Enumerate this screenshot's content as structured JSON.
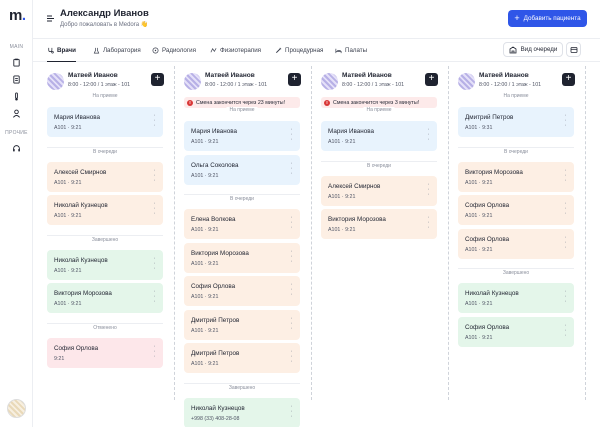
{
  "sidebar": {
    "logo": "m",
    "logo_dot": ".",
    "main_label": "MAIN",
    "other_label": "ПРОЧИЕ",
    "icons": [
      "clipboard-icon",
      "document-icon",
      "thermometer-icon",
      "user-icon",
      "headset-icon"
    ]
  },
  "header": {
    "title": "Александр Иванов",
    "subtitle": "Добро пожаловать в Medora 👋",
    "add_button": "Добавить пациента"
  },
  "tabs": [
    {
      "label": "Врачи",
      "icon": "stethoscope-icon",
      "active": true
    },
    {
      "label": "Лаборатория",
      "icon": "flask-icon",
      "active": false
    },
    {
      "label": "Радиология",
      "icon": "radiation-icon",
      "active": false
    },
    {
      "label": "Физиотерапия",
      "icon": "activity-icon",
      "active": false
    },
    {
      "label": "Процедурная",
      "icon": "syringe-icon",
      "active": false
    },
    {
      "label": "Палаты",
      "icon": "bed-icon",
      "active": false
    }
  ],
  "toolbar": {
    "view_queue": "Вид очереди"
  },
  "columns": [
    {
      "doctor": "Матвей Иванов",
      "meta": "8:00 - 12:00 / 1 этаж - 101",
      "warning": "",
      "sections": [
        {
          "label": "На приеме",
          "cards": [
            {
              "name": "Мария Иванова",
              "sub": "A101 · 9:21",
              "color": "blue"
            }
          ]
        },
        {
          "label": "В очереди",
          "cards": [
            {
              "name": "Алексей Смирнов",
              "sub": "A101 · 9:21",
              "color": "orange"
            },
            {
              "name": "Николай Кузнецов",
              "sub": "A101 · 9:21",
              "color": "orange"
            }
          ]
        },
        {
          "label": "Завершено",
          "cards": [
            {
              "name": "Николай Кузнецов",
              "sub": "A101 · 9:21",
              "color": "green"
            },
            {
              "name": "Виктория Морозова",
              "sub": "A101 · 9:21",
              "color": "green"
            }
          ]
        },
        {
          "label": "Отменено",
          "cards": [
            {
              "name": "София Орлова",
              "sub": "9:21",
              "color": "red"
            }
          ]
        }
      ]
    },
    {
      "doctor": "Матвей Иванов",
      "meta": "8:00 - 12:00 / 1 этаж - 101",
      "warning": "Смена закончится через 23 минуты!",
      "sections": [
        {
          "label": "На приеме",
          "cards": [
            {
              "name": "Мария Иванова",
              "sub": "A101 · 9:21",
              "color": "blue"
            },
            {
              "name": "Ольга Соколова",
              "sub": "A101 · 9:21",
              "color": "blue"
            }
          ]
        },
        {
          "label": "В очереди",
          "cards": [
            {
              "name": "Елена Волкова",
              "sub": "A101 · 9:21",
              "color": "orange"
            },
            {
              "name": "Виктория Морозова",
              "sub": "A101 · 9:21",
              "color": "orange"
            },
            {
              "name": "София Орлова",
              "sub": "A101 · 9:21",
              "color": "orange"
            },
            {
              "name": "Дмитрий Петров",
              "sub": "A101 · 9:21",
              "color": "orange"
            },
            {
              "name": "Дмитрий Петров",
              "sub": "A101 · 9:21",
              "color": "orange"
            }
          ]
        },
        {
          "label": "Завершено",
          "cards": [
            {
              "name": "Николай Кузнецов",
              "sub": "+998 (33) 408-28-08",
              "color": "green"
            }
          ]
        }
      ]
    },
    {
      "doctor": "Матвей Иванов",
      "meta": "8:00 - 12:00 / 1 этаж - 101",
      "warning": "Смена закончится через 3 минуты!",
      "sections": [
        {
          "label": "На приеме",
          "cards": [
            {
              "name": "Мария Иванова",
              "sub": "A101 · 9:21",
              "color": "blue"
            }
          ]
        },
        {
          "label": "В очереди",
          "cards": [
            {
              "name": "Алексей Смирнов",
              "sub": "A101 · 9:21",
              "color": "orange"
            },
            {
              "name": "Виктория Морозова",
              "sub": "A101 · 9:21",
              "color": "orange"
            }
          ]
        }
      ]
    },
    {
      "doctor": "Матвей Иванов",
      "meta": "8:00 - 12:00 / 1 этаж - 101",
      "warning": "",
      "sections": [
        {
          "label": "На приеме",
          "cards": [
            {
              "name": "Дмитрий Петров",
              "sub": "A101 · 9:31",
              "color": "blue"
            }
          ]
        },
        {
          "label": "В очереди",
          "cards": [
            {
              "name": "Виктория Морозова",
              "sub": "A101 · 9:21",
              "color": "orange"
            },
            {
              "name": "София Орлова",
              "sub": "A101 · 9:21",
              "color": "orange"
            },
            {
              "name": "София Орлова",
              "sub": "A101 · 9:21",
              "color": "orange"
            }
          ]
        },
        {
          "label": "Завершено",
          "cards": [
            {
              "name": "Николай Кузнецов",
              "sub": "A101 · 9:21",
              "color": "green"
            },
            {
              "name": "София Орлова",
              "sub": "A101 · 9:21",
              "color": "green"
            }
          ]
        }
      ]
    }
  ]
}
